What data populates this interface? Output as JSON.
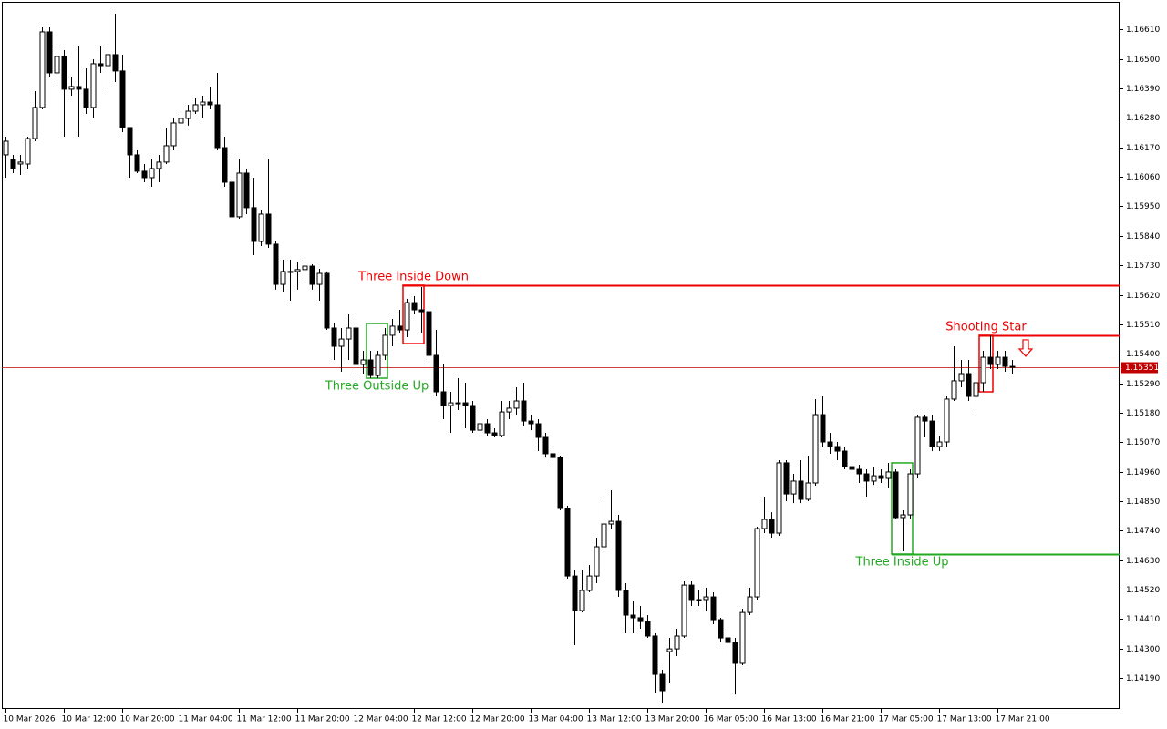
{
  "chart_data": {
    "type": "candlestick",
    "ylim": [
      1.14075,
      1.16713
    ],
    "yticks": [
      {
        "value": 1.1661,
        "label": "1.16610"
      },
      {
        "value": 1.165,
        "label": "1.16500"
      },
      {
        "value": 1.1639,
        "label": "1.16390"
      },
      {
        "value": 1.1628,
        "label": "1.16280"
      },
      {
        "value": 1.1617,
        "label": "1.16170"
      },
      {
        "value": 1.1606,
        "label": "1.16060"
      },
      {
        "value": 1.1595,
        "label": "1.15950"
      },
      {
        "value": 1.1584,
        "label": "1.15840"
      },
      {
        "value": 1.1573,
        "label": "1.15730"
      },
      {
        "value": 1.1562,
        "label": "1.15620"
      },
      {
        "value": 1.1551,
        "label": "1.15510"
      },
      {
        "value": 1.154,
        "label": "1.15400"
      },
      {
        "value": 1.1529,
        "label": "1.15290"
      },
      {
        "value": 1.1518,
        "label": "1.15180"
      },
      {
        "value": 1.1507,
        "label": "1.15070"
      },
      {
        "value": 1.1496,
        "label": "1.14960"
      },
      {
        "value": 1.1485,
        "label": "1.14850"
      },
      {
        "value": 1.1474,
        "label": "1.14740"
      },
      {
        "value": 1.1463,
        "label": "1.14630"
      },
      {
        "value": 1.1452,
        "label": "1.14520"
      },
      {
        "value": 1.1441,
        "label": "1.14410"
      },
      {
        "value": 1.143,
        "label": "1.14300"
      },
      {
        "value": 1.1419,
        "label": "1.14190"
      }
    ],
    "categories": [
      "10 Mar 2026",
      null,
      null,
      null,
      null,
      null,
      null,
      null,
      "10 Mar 12:00",
      null,
      null,
      null,
      null,
      null,
      null,
      null,
      "10 Mar 20:00",
      null,
      null,
      null,
      null,
      null,
      null,
      null,
      "11 Mar 04:00",
      null,
      null,
      null,
      null,
      null,
      null,
      null,
      "11 Mar 12:00",
      null,
      null,
      null,
      null,
      null,
      null,
      null,
      "11 Mar 20:00",
      null,
      null,
      null,
      null,
      null,
      null,
      null,
      "12 Mar 04:00",
      null,
      null,
      null,
      null,
      null,
      null,
      null,
      "12 Mar 12:00",
      null,
      null,
      null,
      null,
      null,
      null,
      null,
      "12 Mar 20:00",
      null,
      null,
      null,
      null,
      null,
      null,
      null,
      "13 Mar 04:00",
      null,
      null,
      null,
      null,
      null,
      null,
      null,
      "13 Mar 12:00",
      null,
      null,
      null,
      null,
      null,
      null,
      null,
      "13 Mar 20:00",
      null,
      null,
      null,
      null,
      null,
      null,
      null,
      "16 Mar 05:00",
      null,
      null,
      null,
      null,
      null,
      null,
      null,
      "16 Mar 13:00",
      null,
      null,
      null,
      null,
      null,
      null,
      null,
      "16 Mar 21:00",
      null,
      null,
      null,
      null,
      null,
      null,
      null,
      "17 Mar 05:00",
      null,
      null,
      null,
      null,
      null,
      null,
      null,
      "17 Mar 13:00",
      null,
      null,
      null,
      null,
      null,
      null,
      null,
      "17 Mar 21:00",
      null,
      null
    ],
    "ohlc": [
      [
        1.16142,
        1.1621,
        1.16057,
        1.16193
      ],
      [
        1.16125,
        1.16142,
        1.16074,
        1.16091
      ],
      [
        1.16108,
        1.16142,
        1.16067,
        1.16115
      ],
      [
        1.16108,
        1.1621,
        1.16091,
        1.16203
      ],
      [
        1.16203,
        1.1638,
        1.16193,
        1.16319
      ],
      [
        1.16319,
        1.16618,
        1.16312,
        1.16601
      ],
      [
        1.16601,
        1.16618,
        1.16431,
        1.16448
      ],
      [
        1.16448,
        1.16533,
        1.16414,
        1.16509
      ],
      [
        1.16509,
        1.16533,
        1.1621,
        1.16387
      ],
      [
        1.16387,
        1.16431,
        1.16363,
        1.16397
      ],
      [
        1.16397,
        1.1655,
        1.1621,
        1.16387
      ],
      [
        1.16387,
        1.16465,
        1.16295,
        1.16319
      ],
      [
        1.16319,
        1.16499,
        1.16278,
        1.16482
      ],
      [
        1.16482,
        1.1655,
        1.16448,
        1.16475
      ],
      [
        1.16475,
        1.16533,
        1.1638,
        1.16516
      ],
      [
        1.16516,
        1.16669,
        1.16414,
        1.16455
      ],
      [
        1.16455,
        1.16516,
        1.16227,
        1.16244
      ],
      [
        1.16244,
        1.16244,
        1.16057,
        1.16142
      ],
      [
        1.16142,
        1.16159,
        1.16074,
        1.16081
      ],
      [
        1.16081,
        1.16108,
        1.1604,
        1.16057
      ],
      [
        1.16057,
        1.16125,
        1.16023,
        1.16091
      ],
      [
        1.16091,
        1.16142,
        1.1604,
        1.16115
      ],
      [
        1.16115,
        1.16244,
        1.16108,
        1.16176
      ],
      [
        1.16176,
        1.16278,
        1.16159,
        1.16261
      ],
      [
        1.16261,
        1.16295,
        1.16244,
        1.16278
      ],
      [
        1.16278,
        1.16329,
        1.16251,
        1.16305
      ],
      [
        1.16305,
        1.16353,
        1.16295,
        1.16329
      ],
      [
        1.16329,
        1.16363,
        1.16278,
        1.16339
      ],
      [
        1.16339,
        1.16397,
        1.16312,
        1.16329
      ],
      [
        1.16329,
        1.16448,
        1.16159,
        1.16169
      ],
      [
        1.16169,
        1.1621,
        1.16023,
        1.1604
      ],
      [
        1.1604,
        1.16125,
        1.15904,
        1.15911
      ],
      [
        1.15911,
        1.16125,
        1.15904,
        1.16074
      ],
      [
        1.16074,
        1.16091,
        1.15921,
        1.15945
      ],
      [
        1.15945,
        1.16057,
        1.15768,
        1.15819
      ],
      [
        1.15819,
        1.15938,
        1.15802,
        1.15921
      ],
      [
        1.15921,
        1.16125,
        1.15795,
        1.15809
      ],
      [
        1.15809,
        1.15819,
        1.15639,
        1.15659
      ],
      [
        1.15659,
        1.15751,
        1.15632,
        1.15707
      ],
      [
        1.15707,
        1.15751,
        1.15598,
        1.15707
      ],
      [
        1.15707,
        1.15741,
        1.15639,
        1.15714
      ],
      [
        1.15714,
        1.15751,
        1.15666,
        1.15727
      ],
      [
        1.15727,
        1.15734,
        1.15639,
        1.15659
      ],
      [
        1.15659,
        1.15717,
        1.15598,
        1.157
      ],
      [
        1.157,
        1.15707,
        1.15489,
        1.15496
      ],
      [
        1.15496,
        1.15513,
        1.15377,
        1.15428
      ],
      [
        1.15428,
        1.15496,
        1.15333,
        1.15455
      ],
      [
        1.15455,
        1.15547,
        1.15377,
        1.15496
      ],
      [
        1.15496,
        1.15547,
        1.15319,
        1.1536
      ],
      [
        1.1536,
        1.15411,
        1.15326,
        1.15377
      ],
      [
        1.15377,
        1.15411,
        1.15309,
        1.15319
      ],
      [
        1.15319,
        1.15411,
        1.15309,
        1.15394
      ],
      [
        1.15394,
        1.15496,
        1.15377,
        1.15469
      ],
      [
        1.15469,
        1.1553,
        1.15428,
        1.15503
      ],
      [
        1.15503,
        1.15564,
        1.15479,
        1.15489
      ],
      [
        1.15489,
        1.15605,
        1.15462,
        1.15591
      ],
      [
        1.15591,
        1.15615,
        1.15547,
        1.15564
      ],
      [
        1.15564,
        1.15649,
        1.15479,
        1.15557
      ],
      [
        1.15557,
        1.15571,
        1.15377,
        1.15394
      ],
      [
        1.15394,
        1.15489,
        1.15241,
        1.15258
      ],
      [
        1.15258,
        1.1536,
        1.15156,
        1.15207
      ],
      [
        1.15207,
        1.15258,
        1.15105,
        1.15217
      ],
      [
        1.15217,
        1.15309,
        1.1519,
        1.15217
      ],
      [
        1.15217,
        1.15292,
        1.15122,
        1.15207
      ],
      [
        1.15207,
        1.15224,
        1.15105,
        1.15115
      ],
      [
        1.15115,
        1.15173,
        1.15095,
        1.15139
      ],
      [
        1.15139,
        1.15156,
        1.15095,
        1.15105
      ],
      [
        1.15105,
        1.15122,
        1.15088,
        1.15095
      ],
      [
        1.15095,
        1.15224,
        1.15088,
        1.15183
      ],
      [
        1.15183,
        1.15224,
        1.15156,
        1.15197
      ],
      [
        1.15197,
        1.15275,
        1.15173,
        1.15224
      ],
      [
        1.15224,
        1.15292,
        1.15129,
        1.15149
      ],
      [
        1.15149,
        1.15173,
        1.15115,
        1.15139
      ],
      [
        1.15139,
        1.15156,
        1.15037,
        1.15088
      ],
      [
        1.15088,
        1.15105,
        1.15013,
        1.15027
      ],
      [
        1.15027,
        1.15054,
        1.14993,
        1.15013
      ],
      [
        1.15013,
        1.1502,
        1.14816,
        1.14823
      ],
      [
        1.14823,
        1.14833,
        1.14561,
        1.14571
      ],
      [
        1.14571,
        1.14595,
        1.14313,
        1.14442
      ],
      [
        1.14442,
        1.14595,
        1.14435,
        1.14517
      ],
      [
        1.14517,
        1.14612,
        1.1451,
        1.14571
      ],
      [
        1.14571,
        1.14714,
        1.14544,
        1.1468
      ],
      [
        1.1468,
        1.14867,
        1.14663,
        1.14765
      ],
      [
        1.14765,
        1.14891,
        1.14748,
        1.14775
      ],
      [
        1.14775,
        1.14799,
        1.14493,
        1.14517
      ],
      [
        1.14517,
        1.14544,
        1.14357,
        1.14425
      ],
      [
        1.14425,
        1.14476,
        1.14357,
        1.14415
      ],
      [
        1.14415,
        1.14459,
        1.14374,
        1.14401
      ],
      [
        1.14401,
        1.14425,
        1.1434,
        1.14347
      ],
      [
        1.14347,
        1.14357,
        1.14136,
        1.14204
      ],
      [
        1.14204,
        1.14221,
        1.14095,
        1.14143
      ],
      [
        1.14289,
        1.1434,
        1.1417,
        1.14299
      ],
      [
        1.14299,
        1.14374,
        1.14272,
        1.14347
      ],
      [
        1.14347,
        1.14551,
        1.1434,
        1.14537
      ],
      [
        1.14537,
        1.14551,
        1.14459,
        1.14483
      ],
      [
        1.14483,
        1.14517,
        1.14459,
        1.14483
      ],
      [
        1.14483,
        1.14527,
        1.14442,
        1.14493
      ],
      [
        1.14493,
        1.1451,
        1.14391,
        1.14408
      ],
      [
        1.14408,
        1.14415,
        1.14323,
        1.1434
      ],
      [
        1.1434,
        1.14357,
        1.14272,
        1.14323
      ],
      [
        1.14323,
        1.1434,
        1.14129,
        1.14245
      ],
      [
        1.14245,
        1.14449,
        1.14238,
        1.14435
      ],
      [
        1.14435,
        1.14527,
        1.14425,
        1.14493
      ],
      [
        1.14493,
        1.14755,
        1.14483,
        1.14748
      ],
      [
        1.14748,
        1.14867,
        1.14731,
        1.14782
      ],
      [
        1.14782,
        1.14809,
        1.14714,
        1.14731
      ],
      [
        1.14731,
        1.15003,
        1.14721,
        1.14993
      ],
      [
        1.14993,
        1.15003,
        1.1485,
        1.14877
      ],
      [
        1.14877,
        1.14952,
        1.14843,
        1.14925
      ],
      [
        1.14925,
        1.15003,
        1.14843,
        1.14857
      ],
      [
        1.14857,
        1.1502,
        1.1485,
        1.14918
      ],
      [
        1.14918,
        1.15231,
        1.14908,
        1.15173
      ],
      [
        1.15173,
        1.15241,
        1.15054,
        1.15071
      ],
      [
        1.15071,
        1.15105,
        1.15027,
        1.15054
      ],
      [
        1.15054,
        1.15071,
        1.15003,
        1.15037
      ],
      [
        1.15037,
        1.15054,
        1.14969,
        1.14979
      ],
      [
        1.14979,
        1.15003,
        1.14952,
        1.14969
      ],
      [
        1.14969,
        1.14986,
        1.14918,
        1.14952
      ],
      [
        1.14952,
        1.14969,
        1.14867,
        1.14925
      ],
      [
        1.14925,
        1.14979,
        1.14911,
        1.14945
      ],
      [
        1.14945,
        1.14969,
        1.14918,
        1.14935
      ],
      [
        1.14935,
        1.14993,
        1.14901,
        1.14959
      ],
      [
        1.14959,
        1.14969,
        1.14782,
        1.14789
      ],
      [
        1.14789,
        1.14816,
        1.14663,
        1.14799
      ],
      [
        1.14799,
        1.14969,
        1.14782,
        1.14952
      ],
      [
        1.14952,
        1.15173,
        1.14935,
        1.15163
      ],
      [
        1.15163,
        1.15173,
        1.15088,
        1.15149
      ],
      [
        1.15149,
        1.15173,
        1.15037,
        1.15054
      ],
      [
        1.15054,
        1.15095,
        1.15037,
        1.15071
      ],
      [
        1.15071,
        1.15241,
        1.15054,
        1.15231
      ],
      [
        1.15231,
        1.15428,
        1.15224,
        1.15299
      ],
      [
        1.15299,
        1.15377,
        1.15275,
        1.15326
      ],
      [
        1.15326,
        1.15377,
        1.15224,
        1.15241
      ],
      [
        1.15241,
        1.15326,
        1.15173,
        1.15292
      ],
      [
        1.15292,
        1.15411,
        1.15258,
        1.15387
      ],
      [
        1.15387,
        1.15469,
        1.15343,
        1.1536
      ],
      [
        1.1536,
        1.15411,
        1.15343,
        1.15387
      ],
      [
        1.15387,
        1.15411,
        1.15333,
        1.15353
      ],
      [
        1.15353,
        1.15377,
        1.15326,
        1.15351
      ]
    ],
    "last_price": {
      "value": 1.15351,
      "label": "1.15351",
      "color": "#c00000"
    },
    "patterns": [
      {
        "label": "Three Outside Up",
        "color": "#22aa22",
        "start": 50,
        "end": 52,
        "top": 1.15513,
        "bottom": 1.15309,
        "label_side": "below"
      },
      {
        "label": "Three Inside Down",
        "color": "#ee0000",
        "start": 55,
        "end": 57,
        "top": 1.15656,
        "bottom": 1.15438,
        "label_side": "above",
        "level": 1.15656
      },
      {
        "label": "Three Inside Up",
        "color": "#22aa22",
        "start": 122,
        "end": 124,
        "top": 1.14993,
        "bottom": 1.14653,
        "label_side": "below",
        "level": 1.14653
      },
      {
        "label": "Shooting Star",
        "color": "#ee0000",
        "start": 134,
        "end": 135,
        "top": 1.15469,
        "bottom": 1.15258,
        "label_side": "above",
        "level": 1.15469,
        "arrow": "down"
      }
    ]
  }
}
